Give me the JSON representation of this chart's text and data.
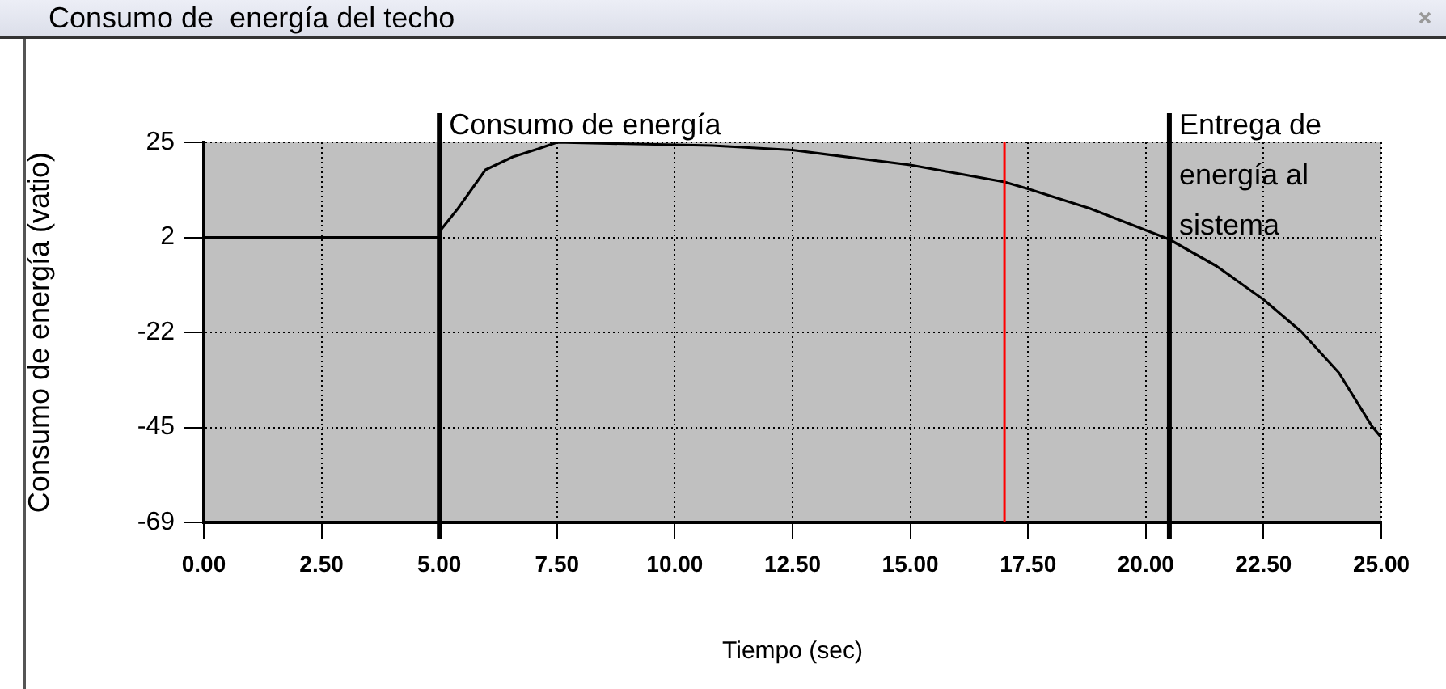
{
  "chart_data": {
    "type": "line",
    "title": "Consumo de  energía del techo",
    "xlabel": "Tiempo (sec)",
    "ylabel": "Consumo de energía (vatio)",
    "series": [
      {
        "color": "#000000",
        "x": [
          0,
          5,
          5.05,
          5.4,
          5.98,
          6.56,
          7.1,
          7.5,
          10.8,
          12.5,
          15,
          17,
          17.5,
          18.8,
          20.5,
          21.5,
          22.5,
          23.3,
          24.1,
          24.8,
          25,
          25
        ],
        "values": [
          1.5,
          1.5,
          3.6,
          8.7,
          18.2,
          21.4,
          23.4,
          25,
          24.2,
          23.1,
          19.4,
          15.2,
          13.5,
          8.7,
          1,
          -5.6,
          -13.9,
          -21.8,
          -32,
          -45.2,
          -48,
          -58
        ]
      }
    ],
    "xlim": [
      0,
      25
    ],
    "xticks": [
      {
        "value": 0,
        "label": "0.00"
      },
      {
        "value": 2.5,
        "label": "2.50"
      },
      {
        "value": 5,
        "label": "5.00"
      },
      {
        "value": 7.5,
        "label": "7.50"
      },
      {
        "value": 10,
        "label": "10.00"
      },
      {
        "value": 12.5,
        "label": "12.50"
      },
      {
        "value": 15,
        "label": "15.00"
      },
      {
        "value": 17.5,
        "label": "17.50"
      },
      {
        "value": 20,
        "label": "20.00"
      },
      {
        "value": 22.5,
        "label": "22.50"
      },
      {
        "value": 25,
        "label": "25.00"
      }
    ],
    "ylim": [
      -69,
      25
    ],
    "yticks": [
      {
        "value": -69,
        "label": "-69"
      },
      {
        "value": -45.5,
        "label": "-45"
      },
      {
        "value": -22,
        "label": "-22"
      },
      {
        "value": 1.5,
        "label": "2"
      },
      {
        "value": 25,
        "label": "25"
      }
    ],
    "grid": true,
    "line_style": "solid",
    "marker": "none",
    "ref_lines": [
      {
        "axis": "x",
        "value": 5,
        "label": "Consumo de energía",
        "color": "#000000"
      },
      {
        "axis": "x",
        "value": 17,
        "color": "#ff0000"
      },
      {
        "axis": "x",
        "value": 20.5,
        "label": "Entrega de energía al sistema",
        "color": "#000000"
      }
    ]
  }
}
